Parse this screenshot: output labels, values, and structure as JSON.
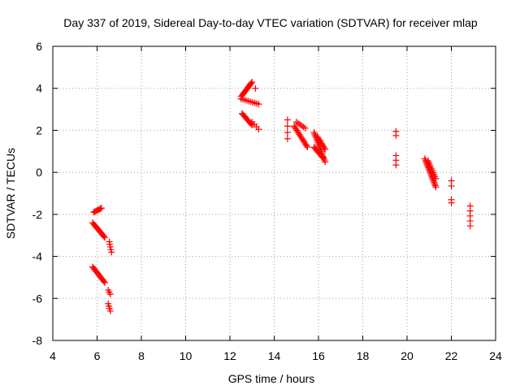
{
  "chart_data": {
    "type": "scatter",
    "title": "Day 337 of 2019, Sidereal Day-to-day VTEC variation (SDTVAR) for receiver mlap",
    "xlabel": "GPS time / hours",
    "ylabel": "SDTVAR / TECUs",
    "xlim": [
      4,
      24
    ],
    "ylim": [
      -8,
      6
    ],
    "grid": true,
    "legend": "none",
    "x_ticks": [
      "4",
      "6",
      "8",
      "10",
      "12",
      "14",
      "16",
      "18",
      "20",
      "22",
      "24"
    ],
    "y_ticks": [
      "-8",
      "-6",
      "-4",
      "-2",
      "0",
      "2",
      "4",
      "6"
    ],
    "marker": "plus",
    "series": [
      {
        "name": "SDTVAR",
        "color": "#ff0000",
        "segments": [
          {
            "x0": 5.85,
            "y0": -1.9,
            "x1": 6.2,
            "y1": -1.7,
            "n": 8
          },
          {
            "x0": 5.8,
            "y0": -2.4,
            "x1": 6.35,
            "y1": -3.1,
            "n": 14
          },
          {
            "x0": 6.55,
            "y0": -3.3,
            "x1": 6.65,
            "y1": -3.8,
            "n": 5
          },
          {
            "x0": 5.8,
            "y0": -4.5,
            "x1": 6.35,
            "y1": -5.25,
            "n": 14
          },
          {
            "x0": 6.5,
            "y0": -5.6,
            "x1": 6.6,
            "y1": -5.8,
            "n": 3
          },
          {
            "x0": 6.5,
            "y0": -6.25,
            "x1": 6.6,
            "y1": -6.6,
            "n": 4
          },
          {
            "x0": 12.5,
            "y0": 3.6,
            "x1": 13.0,
            "y1": 4.3,
            "n": 14
          },
          {
            "x0": 12.5,
            "y0": 3.5,
            "x1": 13.3,
            "y1": 3.25,
            "n": 10
          },
          {
            "x0": 12.55,
            "y0": 2.8,
            "x1": 13.0,
            "y1": 2.25,
            "n": 12
          },
          {
            "x0": 13.0,
            "y0": 2.4,
            "x1": 13.3,
            "y1": 2.05,
            "n": 4
          },
          {
            "x0": 13.15,
            "y0": 4.0,
            "x1": 13.15,
            "y1": 4.0,
            "n": 1
          },
          {
            "x0": 14.6,
            "y0": 2.5,
            "x1": 14.6,
            "y1": 1.6,
            "n": 4
          },
          {
            "x0": 14.9,
            "y0": 2.2,
            "x1": 15.5,
            "y1": 1.2,
            "n": 16
          },
          {
            "x0": 15.0,
            "y0": 2.4,
            "x1": 15.4,
            "y1": 2.1,
            "n": 6
          },
          {
            "x0": 15.8,
            "y0": 1.9,
            "x1": 16.3,
            "y1": 0.5,
            "n": 18
          },
          {
            "x0": 15.8,
            "y0": 1.2,
            "x1": 16.2,
            "y1": 0.7,
            "n": 10
          },
          {
            "x0": 15.95,
            "y0": 1.7,
            "x1": 16.3,
            "y1": 1.1,
            "n": 10
          },
          {
            "x0": 19.5,
            "y0": 1.95,
            "x1": 19.5,
            "y1": 1.75,
            "n": 2
          },
          {
            "x0": 19.5,
            "y0": 0.8,
            "x1": 19.5,
            "y1": 0.35,
            "n": 3
          },
          {
            "x0": 20.8,
            "y0": 0.65,
            "x1": 21.3,
            "y1": -0.7,
            "n": 20
          },
          {
            "x0": 20.95,
            "y0": 0.55,
            "x1": 21.3,
            "y1": -0.3,
            "n": 10
          },
          {
            "x0": 22.0,
            "y0": -0.4,
            "x1": 22.0,
            "y1": -0.65,
            "n": 2
          },
          {
            "x0": 22.0,
            "y0": -1.3,
            "x1": 22.0,
            "y1": -1.45,
            "n": 2
          },
          {
            "x0": 22.85,
            "y0": -1.6,
            "x1": 22.85,
            "y1": -2.55,
            "n": 5
          }
        ]
      }
    ]
  }
}
